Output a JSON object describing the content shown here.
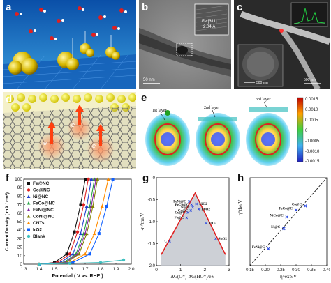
{
  "panels": {
    "a": {
      "label": "a"
    },
    "b": {
      "label": "b",
      "inset_text": "Fe [311]",
      "inset_sub": "2.04 Å",
      "scalebar": "50 nm"
    },
    "c": {
      "label": "c",
      "scalebar_main": "500 nm",
      "scalebar_inset": "500 nm"
    },
    "d": {
      "label": "d",
      "electron": "e"
    },
    "e": {
      "label": "e",
      "layers": [
        "1st layer",
        "2nd layer",
        "3rd layer"
      ],
      "colorbar_ticks": [
        "0.0015",
        "0.0010",
        "0.0005",
        "0",
        "-0.0005",
        "-0.0010",
        "-0.0015"
      ]
    },
    "f": {
      "label": "f"
    },
    "g": {
      "label": "g"
    },
    "h": {
      "label": "h"
    }
  },
  "chart_data": [
    {
      "type": "line",
      "panel": "f",
      "xlabel": "Potential ( V vs. RHE )",
      "ylabel": "Current Density ( mA / cm²)",
      "xlim": [
        1.3,
        2.0
      ],
      "ylim": [
        0,
        100
      ],
      "xticks": [
        "1.3",
        "1.4",
        "1.5",
        "1.6",
        "1.7",
        "1.8",
        "1.9",
        "2.0"
      ],
      "yticks": [
        "0",
        "10",
        "20",
        "30",
        "40",
        "50",
        "60",
        "70",
        "80",
        "90",
        "100"
      ],
      "legend_position": "top-left",
      "series": [
        {
          "name": "Fe@NC",
          "color": "#111111",
          "marker": "square",
          "x": [
            1.4,
            1.5,
            1.58,
            1.63,
            1.67,
            1.7
          ],
          "y": [
            0,
            2,
            12,
            38,
            70,
            100
          ]
        },
        {
          "name": "Co@NC",
          "color": "#e02020",
          "marker": "circle",
          "x": [
            1.4,
            1.52,
            1.6,
            1.65,
            1.69,
            1.72
          ],
          "y": [
            0,
            2,
            12,
            38,
            70,
            100
          ]
        },
        {
          "name": "Ni@NC",
          "color": "#2040d0",
          "marker": "triangle",
          "x": [
            1.4,
            1.54,
            1.62,
            1.67,
            1.71,
            1.74
          ],
          "y": [
            0,
            2,
            12,
            36,
            68,
            100
          ]
        },
        {
          "name": "FeCo@NC",
          "color": "#20a040",
          "marker": "triangle",
          "x": [
            1.4,
            1.56,
            1.64,
            1.69,
            1.73,
            1.76
          ],
          "y": [
            0,
            2,
            12,
            36,
            68,
            100
          ]
        },
        {
          "name": "FeNi@NC",
          "color": "#8020a0",
          "marker": "triangle",
          "x": [
            1.4,
            1.57,
            1.65,
            1.7,
            1.74,
            1.77
          ],
          "y": [
            0,
            2,
            12,
            36,
            68,
            100
          ]
        },
        {
          "name": "CoNi@NC",
          "color": "#808000",
          "marker": "triangle",
          "x": [
            1.4,
            1.58,
            1.66,
            1.71,
            1.75,
            1.78
          ],
          "y": [
            0,
            2,
            12,
            36,
            68,
            100
          ]
        },
        {
          "name": "CNTs",
          "color": "#ff8c00",
          "marker": "triangle",
          "x": [
            1.4,
            1.6,
            1.7,
            1.76,
            1.81,
            1.85
          ],
          "y": [
            0,
            2,
            12,
            36,
            68,
            100
          ]
        },
        {
          "name": "IrO2",
          "color": "#1060ff",
          "marker": "square",
          "x": [
            1.4,
            1.62,
            1.73,
            1.79,
            1.84,
            1.88
          ],
          "y": [
            0,
            2,
            12,
            36,
            68,
            100
          ]
        },
        {
          "name": "Blank",
          "color": "#40c0c0",
          "marker": "circle",
          "x": [
            1.4,
            1.6,
            1.8,
            1.95
          ],
          "y": [
            0,
            1,
            2,
            5
          ]
        }
      ]
    },
    {
      "type": "scatter",
      "panel": "g",
      "xlabel": "ΔG(O*)-ΔG(HO*)/eV",
      "ylabel": "-η^the/V",
      "xlim": [
        0,
        3
      ],
      "ylim": [
        -2.0,
        0
      ],
      "xticks": [
        "0",
        "1",
        "2",
        "3"
      ],
      "yticks": [
        "0",
        "-0.5",
        "-1.0",
        "-1.5",
        "-2.0"
      ],
      "volcano": {
        "x": [
          0.2,
          1.6,
          2.85
        ],
        "y": [
          -1.75,
          -0.35,
          -1.75
        ]
      },
      "points": [
        {
          "label": "FeNi@C",
          "x": 1.35,
          "y": -0.55
        },
        {
          "label": "FeCo@C",
          "x": 1.45,
          "y": -0.62
        },
        {
          "label": "Ni@C",
          "x": 1.5,
          "y": -0.68
        },
        {
          "label": "NiO2",
          "x": 1.65,
          "y": -0.6
        },
        {
          "label": "Co@C",
          "x": 1.42,
          "y": -0.75
        },
        {
          "label": "PbO2",
          "x": 1.75,
          "y": -0.72
        },
        {
          "label": "Cu@C",
          "x": 1.3,
          "y": -0.8
        },
        {
          "label": "Fe@C",
          "x": 1.25,
          "y": -0.92
        },
        {
          "label": "TiO2",
          "x": 2.05,
          "y": -1.05
        },
        {
          "label": "C",
          "x": 0.55,
          "y": -1.45
        },
        {
          "label": "SnO2",
          "x": 2.45,
          "y": -1.4
        }
      ]
    },
    {
      "type": "scatter",
      "panel": "h",
      "xlabel": "η^exp/V",
      "ylabel": "η^the/V",
      "xlim": [
        0.15,
        0.4
      ],
      "ylim": [
        0.3,
        1.3
      ],
      "xticks": [
        "0.15",
        "0.20",
        "0.25",
        "0.30",
        "0.35",
        "0.40"
      ],
      "yticks": [],
      "fit_line": {
        "x": [
          0.15,
          0.4
        ],
        "y": [
          0.3,
          1.3
        ]
      },
      "points": [
        {
          "label": "FeNi@C",
          "x": 0.21,
          "y": 0.49
        },
        {
          "label": "Ni@C",
          "x": 0.26,
          "y": 0.72
        },
        {
          "label": "NiCo@C",
          "x": 0.27,
          "y": 0.85
        },
        {
          "label": "FeCo@C",
          "x": 0.3,
          "y": 0.93
        },
        {
          "label": "Co@C",
          "x": 0.33,
          "y": 0.98
        }
      ]
    }
  ]
}
